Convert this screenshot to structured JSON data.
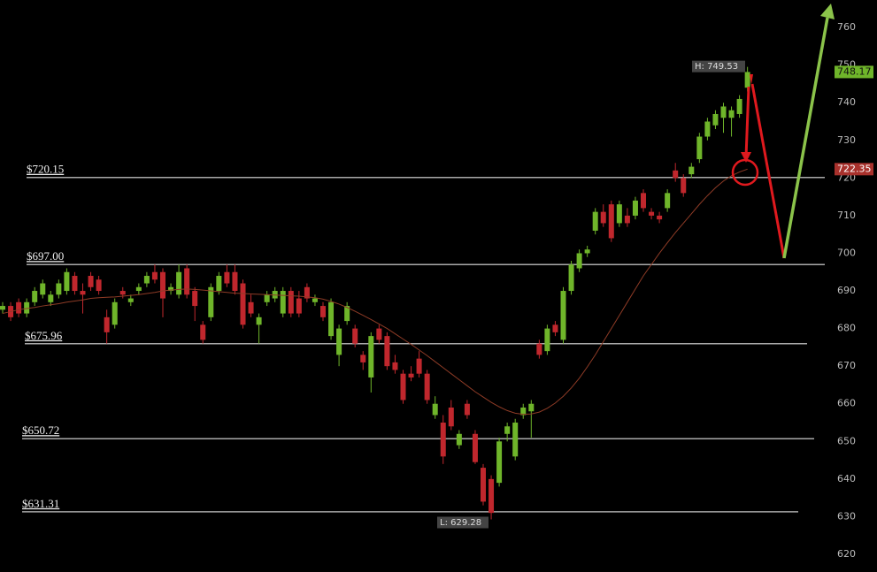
{
  "chart_data": {
    "type": "candlestick",
    "ylim": [
      615.3,
      767.3
    ],
    "yticks": [
      620,
      630,
      640,
      650,
      660,
      670,
      680,
      690,
      700,
      710,
      720,
      730,
      740,
      750,
      760
    ],
    "up_color": "#6fb52a",
    "down_color": "#c0272d",
    "ma_color": "#8e3b26",
    "candles": [
      [
        685,
        687,
        684,
        686
      ],
      [
        686,
        687,
        682,
        683
      ],
      [
        687,
        688,
        683,
        684
      ],
      [
        684,
        688,
        683,
        687
      ],
      [
        687,
        691,
        686,
        690
      ],
      [
        689,
        693,
        688,
        692
      ],
      [
        687,
        690,
        686,
        689
      ],
      [
        689,
        693,
        688,
        692
      ],
      [
        690,
        696,
        689,
        695
      ],
      [
        694,
        695,
        689,
        690
      ],
      [
        690,
        692,
        684,
        689
      ],
      [
        694,
        695,
        690,
        691
      ],
      [
        693,
        694,
        689,
        690
      ],
      [
        683,
        685,
        676,
        679
      ],
      [
        681,
        688,
        680,
        687
      ],
      [
        690,
        691,
        688,
        689
      ],
      [
        687,
        689,
        686,
        688
      ],
      [
        690,
        692,
        689,
        691
      ],
      [
        692,
        695,
        691,
        694
      ],
      [
        695,
        697,
        692,
        693
      ],
      [
        695,
        696,
        683,
        688
      ],
      [
        690,
        692,
        689,
        691
      ],
      [
        689,
        697,
        688,
        695
      ],
      [
        696,
        697,
        688,
        689
      ],
      [
        690,
        691,
        682,
        686
      ],
      [
        681,
        682,
        676,
        677
      ],
      [
        683,
        692,
        682,
        691
      ],
      [
        690,
        695,
        689,
        694
      ],
      [
        695,
        697,
        691,
        692
      ],
      [
        695,
        697,
        689,
        690
      ],
      [
        692,
        693,
        680,
        681
      ],
      [
        687,
        689,
        683,
        684
      ],
      [
        681,
        684,
        676,
        683
      ],
      [
        687,
        690,
        686,
        689
      ],
      [
        688,
        691,
        687,
        690
      ],
      [
        684,
        691,
        683,
        690
      ],
      [
        690,
        691,
        683,
        684
      ],
      [
        688,
        690,
        683,
        684
      ],
      [
        691,
        692,
        687,
        688
      ],
      [
        687,
        689,
        686,
        688
      ],
      [
        686,
        687,
        682,
        683
      ],
      [
        678,
        688,
        677,
        687
      ],
      [
        673,
        681,
        670,
        680
      ],
      [
        682,
        687,
        681,
        686
      ],
      [
        680,
        681,
        675,
        676
      ],
      [
        673,
        674,
        669,
        671
      ],
      [
        667,
        679,
        663,
        678
      ],
      [
        680,
        681,
        676,
        677
      ],
      [
        678,
        679,
        669,
        670
      ],
      [
        671,
        673,
        668,
        669
      ],
      [
        668,
        669,
        660,
        661
      ],
      [
        668,
        670,
        666,
        667
      ],
      [
        672,
        674,
        667,
        668
      ],
      [
        668,
        669,
        660,
        661
      ],
      [
        657,
        662,
        656,
        660
      ],
      [
        655,
        657,
        644,
        646
      ],
      [
        659,
        661,
        653,
        654
      ],
      [
        649,
        653,
        648,
        652
      ],
      [
        660,
        661,
        656,
        657
      ],
      [
        652,
        653,
        644,
        644.5
      ],
      [
        643,
        644,
        633,
        634
      ],
      [
        640,
        641,
        629.28,
        631
      ],
      [
        639,
        651,
        638,
        650
      ],
      [
        652,
        655,
        650,
        654
      ],
      [
        646,
        656,
        645,
        655
      ],
      [
        657,
        660,
        656,
        659
      ],
      [
        658,
        661,
        651,
        660
      ],
      [
        676,
        677,
        672,
        673
      ],
      [
        674,
        681,
        673,
        680
      ],
      [
        681,
        682,
        678,
        679
      ],
      [
        677,
        691,
        676,
        690
      ],
      [
        690,
        698,
        689,
        697
      ],
      [
        696,
        701,
        695,
        700
      ],
      [
        700,
        702,
        699,
        701
      ],
      [
        706,
        712,
        705,
        711
      ],
      [
        711,
        713,
        707,
        708
      ],
      [
        713,
        714,
        703,
        704
      ],
      [
        708,
        714,
        707,
        713
      ],
      [
        710,
        712,
        707,
        708
      ],
      [
        710,
        715,
        709,
        714
      ],
      [
        716,
        717,
        711,
        712
      ],
      [
        711,
        712,
        709,
        710
      ],
      [
        710,
        711,
        708,
        709
      ],
      [
        712,
        717,
        711,
        716
      ],
      [
        722,
        724,
        719,
        720
      ],
      [
        720,
        721,
        715,
        716
      ],
      [
        721,
        724,
        720,
        723
      ],
      [
        725,
        732,
        724,
        731
      ],
      [
        731,
        736,
        730,
        735
      ],
      [
        734,
        738,
        733,
        737
      ],
      [
        736,
        740,
        732,
        739
      ],
      [
        736,
        739,
        731,
        738
      ],
      [
        737,
        742,
        736,
        741
      ],
      [
        744,
        749.53,
        743,
        748.17
      ]
    ],
    "ma": [
      684,
      684.5,
      685,
      685.3,
      685.6,
      686,
      686.3,
      686.6,
      687,
      687.3,
      687.6,
      688,
      688.2,
      688.3,
      688.4,
      688.6,
      688.8,
      689,
      689.3,
      689.6,
      690,
      690.2,
      690.4,
      690.5,
      690.4,
      690.2,
      690,
      689.8,
      689.6,
      689.4,
      689.3,
      689.2,
      689.1,
      689,
      688.9,
      688.8,
      688.7,
      688.6,
      688.4,
      688.2,
      687.8,
      687.2,
      686.5,
      685.6,
      684.6,
      683.5,
      682.4,
      681.2,
      680,
      678.6,
      677.2,
      675.8,
      674.3,
      672.8,
      671.2,
      669.6,
      668,
      666.4,
      664.8,
      663.2,
      661.8,
      660.4,
      659.2,
      658.2,
      657.5,
      657.2,
      657.3,
      657.8,
      658.8,
      660.2,
      662,
      664.2,
      666.8,
      669.8,
      673,
      676.5,
      680,
      683.5,
      687,
      690.5,
      694,
      697,
      700,
      702.8,
      705.5,
      708,
      710.5,
      713,
      715.3,
      717.4,
      719.2,
      720.6,
      721.6,
      722.35
    ],
    "levels": [
      {
        "value": 720.15,
        "label": "$720.15"
      },
      {
        "value": 697.0,
        "label": "$697.00"
      },
      {
        "value": 675.96,
        "label": "$675.96"
      },
      {
        "value": 650.72,
        "label": "$650.72"
      },
      {
        "value": 631.31,
        "label": "$631.31"
      }
    ],
    "annotations": {
      "high": "H: 749.53",
      "low": "L: 629.28"
    }
  }
}
